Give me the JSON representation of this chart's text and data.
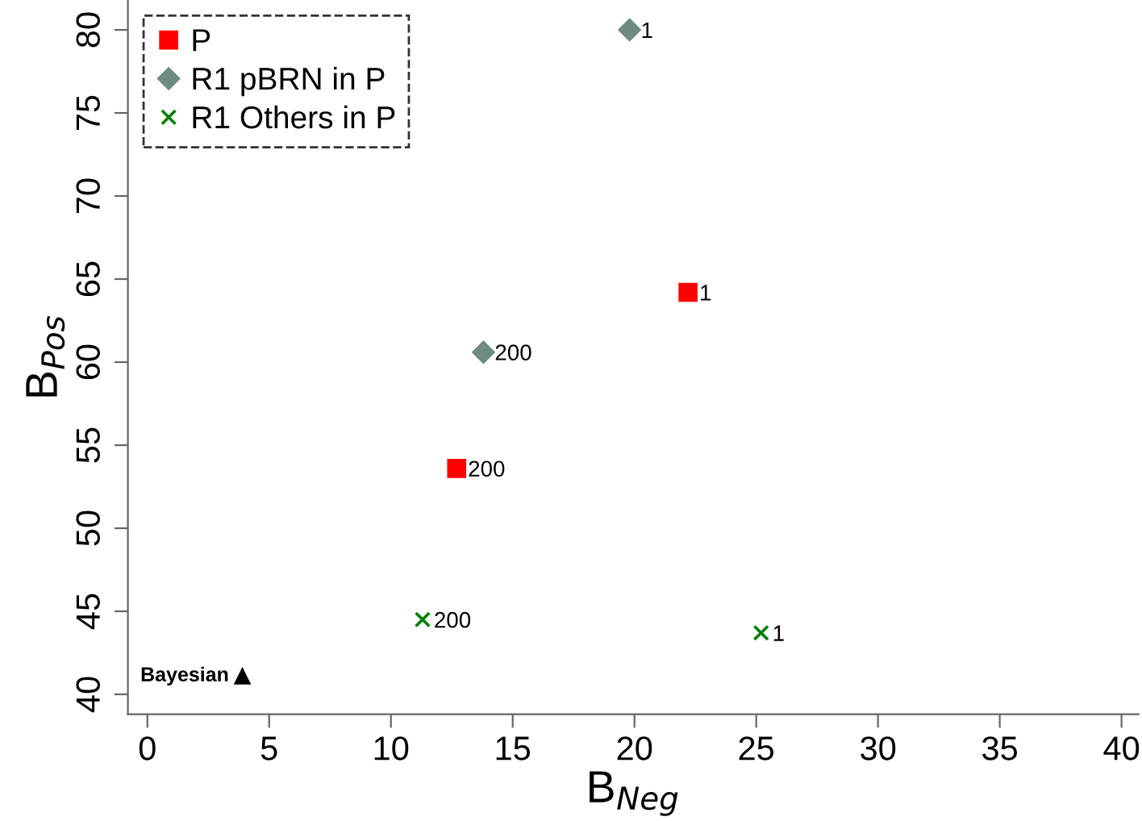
{
  "chart_data": {
    "type": "scatter",
    "xlabel": "B$_{Neg}$",
    "ylabel": "B$_{Pos}$",
    "xlim": [
      -0.8,
      40.7
    ],
    "ylim": [
      38.8,
      81.8
    ],
    "xticks": [
      0,
      5,
      10,
      15,
      20,
      25,
      30,
      35,
      40
    ],
    "yticks": [
      40,
      45,
      50,
      55,
      60,
      65,
      70,
      75,
      80
    ],
    "grid": false,
    "legend": "top left",
    "series": [
      {
        "name": "P",
        "color": "#ff0000",
        "marker": "square",
        "x": [
          22.2,
          12.7
        ],
        "values": [
          64.2,
          53.6
        ]
      },
      {
        "name": "R1 pBRN in P",
        "color": "#6e8b80",
        "marker": "diamond",
        "x": [
          19.8,
          13.8
        ],
        "values": [
          80.0,
          60.6
        ]
      },
      {
        "name": "R1 Others in P",
        "color": "#008000",
        "marker": "cross",
        "x": [
          25.2,
          11.3
        ],
        "values": [
          43.7,
          44.5
        ]
      },
      {
        "color": "#000000",
        "marker": "triangle",
        "x": [
          3.9
        ],
        "values": [
          41.1
        ]
      }
    ],
    "annotations": [
      {
        "text": "1",
        "x": 22.2,
        "y": 64.2
      },
      {
        "text": "200",
        "x": 12.7,
        "y": 53.6
      },
      {
        "text": "1",
        "x": 19.8,
        "y": 80.0
      },
      {
        "text": "200",
        "x": 13.8,
        "y": 60.6
      },
      {
        "text": "1",
        "x": 25.2,
        "y": 43.7
      },
      {
        "text": "200",
        "x": 11.3,
        "y": 44.5
      },
      {
        "text": "Bayesian",
        "x": 3.9,
        "y": 41.1
      }
    ]
  }
}
